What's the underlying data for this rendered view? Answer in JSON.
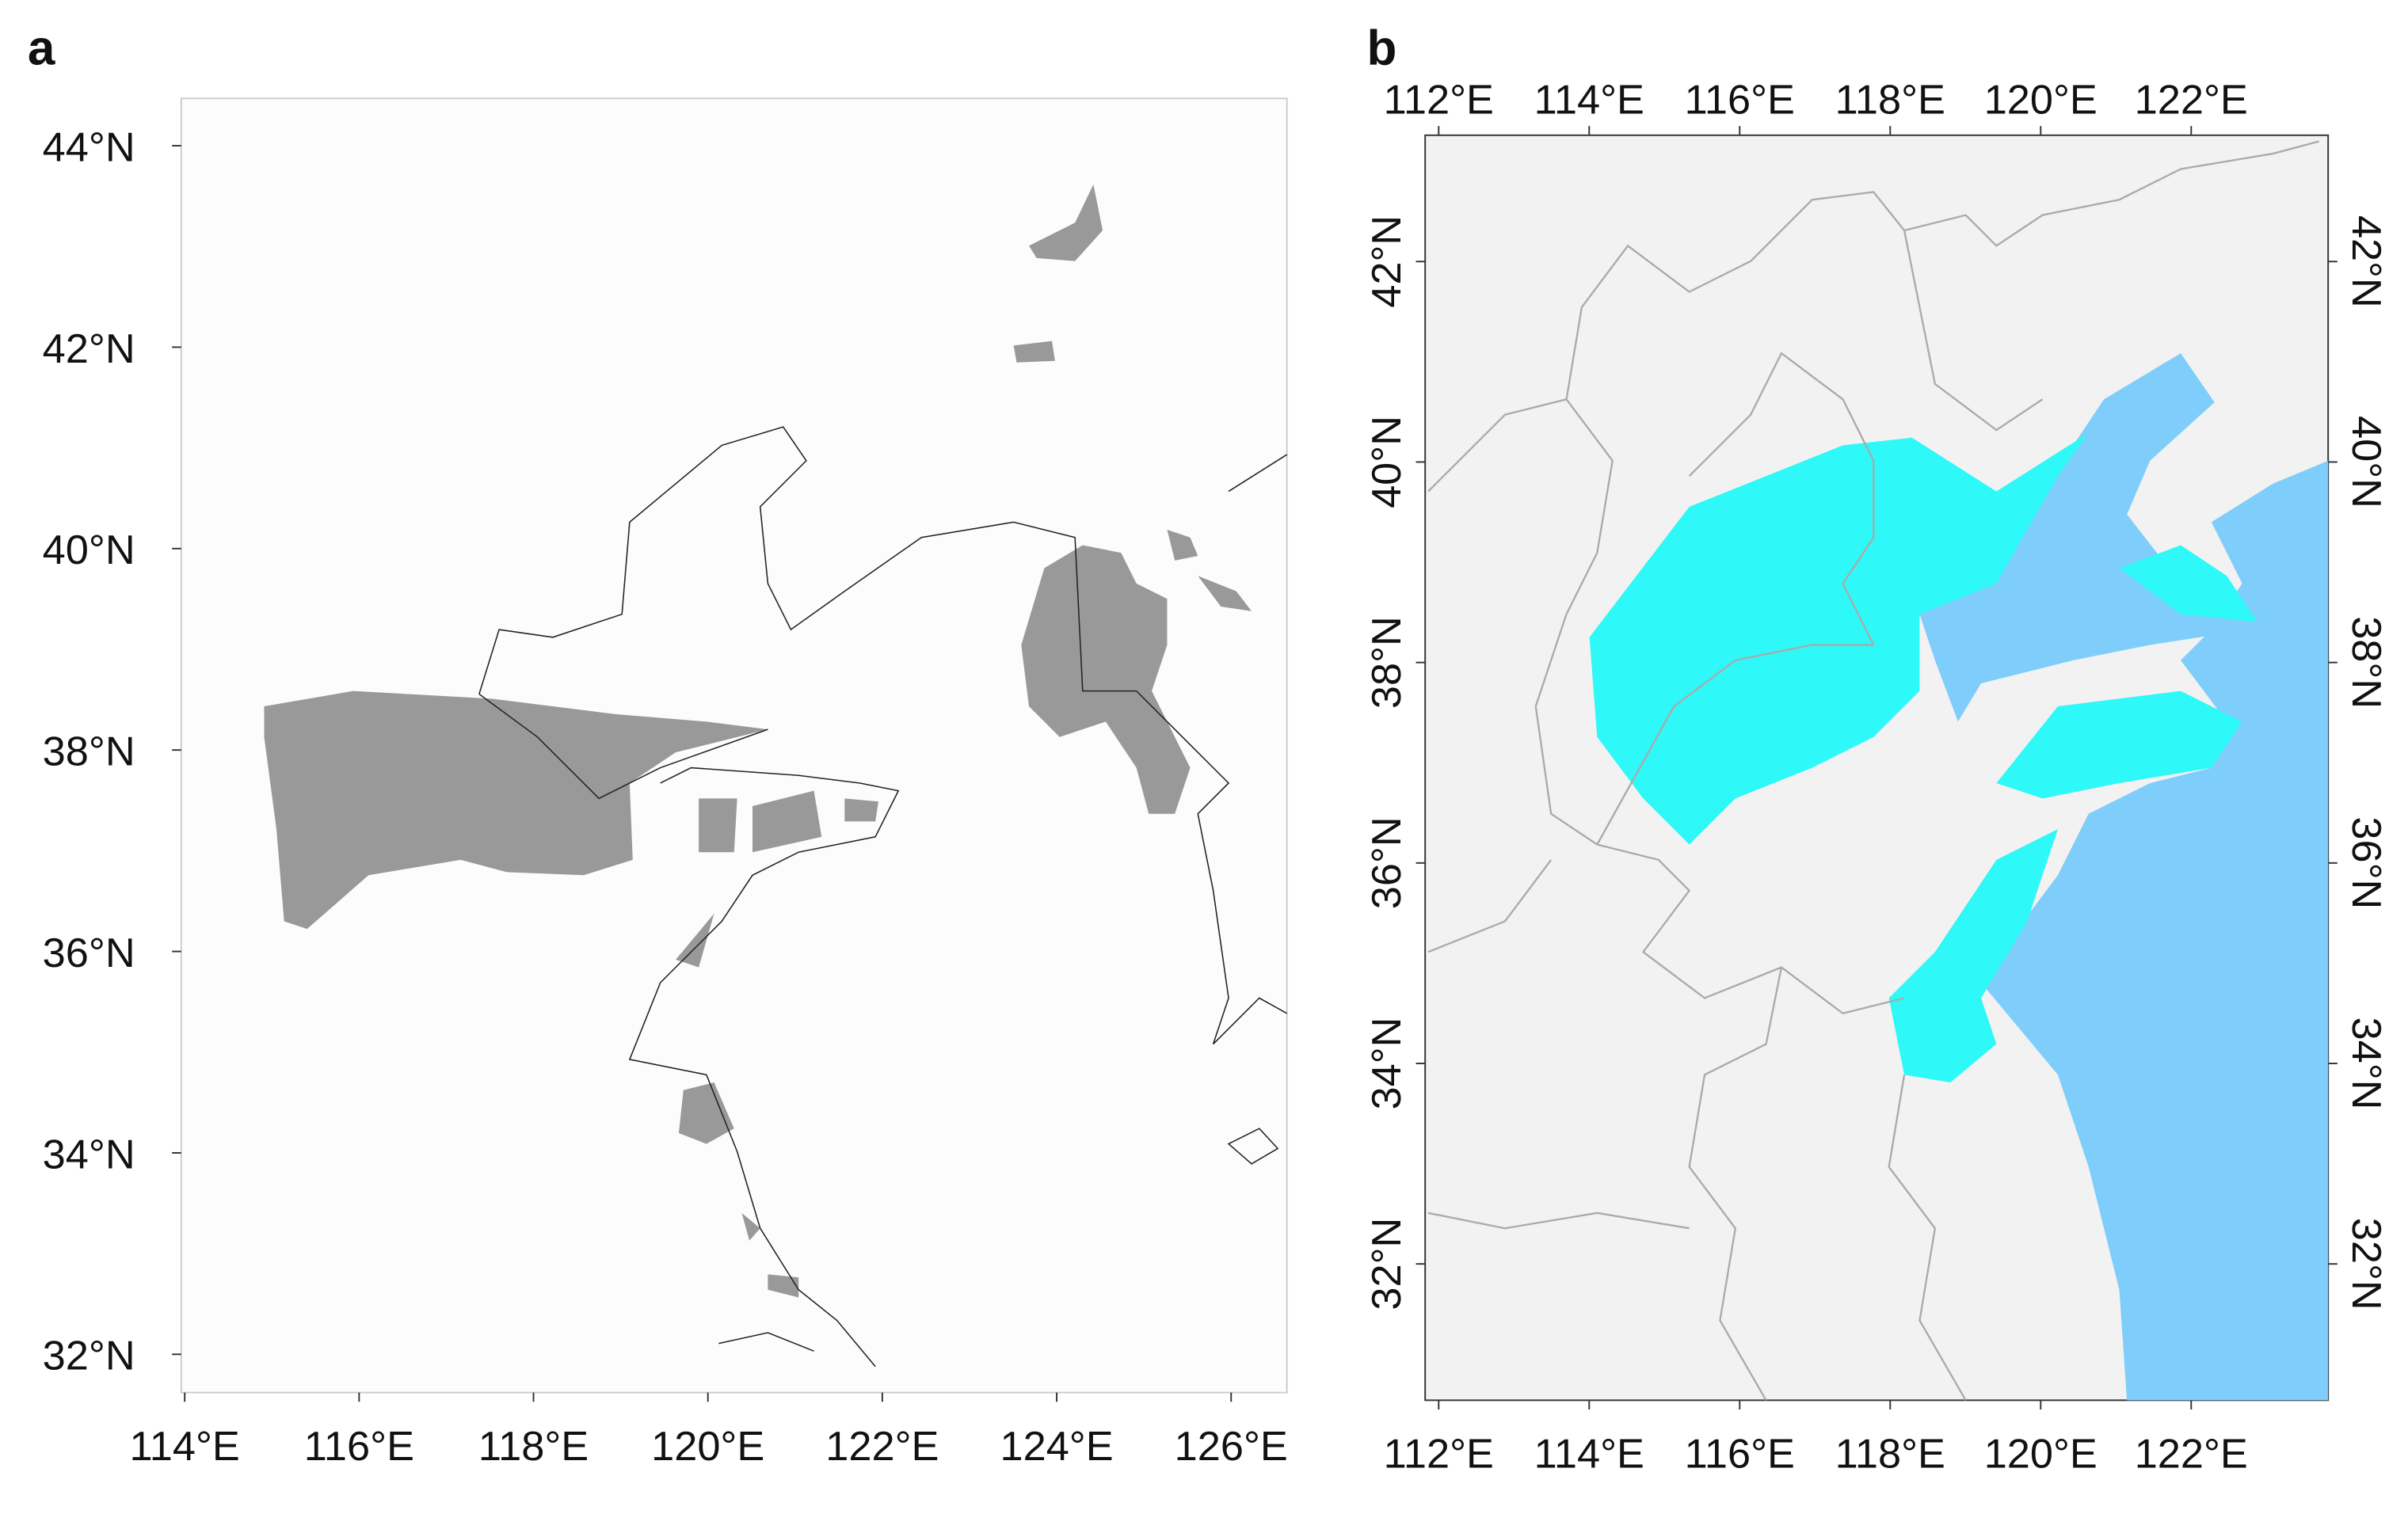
{
  "panels": [
    {
      "label": "a",
      "xlim": [
        113.96,
        126.64
      ],
      "ylim": [
        31.62,
        44.47
      ],
      "xticks": [
        {
          "value": 114,
          "label": "114°E"
        },
        {
          "value": 116,
          "label": "116°E"
        },
        {
          "value": 118,
          "label": "118°E"
        },
        {
          "value": 120,
          "label": "120°E"
        },
        {
          "value": 122,
          "label": "122°E"
        },
        {
          "value": 124,
          "label": "124°E"
        },
        {
          "value": 126,
          "label": "126°E"
        }
      ],
      "yticks": [
        {
          "value": 32,
          "label": "32°N"
        },
        {
          "value": 34,
          "label": "34°N"
        },
        {
          "value": 36,
          "label": "36°N"
        },
        {
          "value": 38,
          "label": "38°N"
        },
        {
          "value": 40,
          "label": "40°N"
        },
        {
          "value": 42,
          "label": "42°N"
        },
        {
          "value": 44,
          "label": "44°N"
        }
      ]
    },
    {
      "label": "b",
      "xlim": [
        111.82,
        123.82
      ],
      "ylim": [
        30.64,
        43.26
      ],
      "xticks": [
        {
          "value": 112,
          "label": "112°E"
        },
        {
          "value": 114,
          "label": "114°E"
        },
        {
          "value": 116,
          "label": "116°E"
        },
        {
          "value": 118,
          "label": "118°E"
        },
        {
          "value": 120,
          "label": "120°E"
        },
        {
          "value": 122,
          "label": "122°E"
        }
      ],
      "yticks": [
        {
          "value": 32,
          "label": "32°N"
        },
        {
          "value": 34,
          "label": "34°N"
        },
        {
          "value": 36,
          "label": "36°N"
        },
        {
          "value": 38,
          "label": "38°N"
        },
        {
          "value": 40,
          "label": "40°N"
        },
        {
          "value": 42,
          "label": "42°N"
        }
      ]
    }
  ]
}
